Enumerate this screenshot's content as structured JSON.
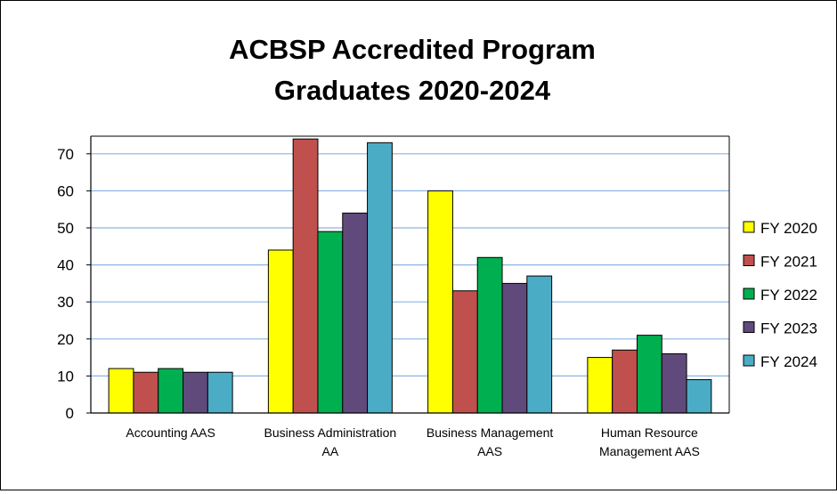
{
  "chart_data": {
    "type": "bar",
    "title": [
      "ACBSP Accredited Program",
      "Graduates 2020-2024"
    ],
    "categories": [
      [
        "Accounting AAS"
      ],
      [
        "Business Administration",
        "AA"
      ],
      [
        "Business Management",
        "AAS"
      ],
      [
        "Human Resource",
        "Management AAS"
      ]
    ],
    "series": [
      {
        "name": "FY 2020",
        "color": "#ffff00",
        "values": [
          12,
          44,
          60,
          15
        ]
      },
      {
        "name": "FY 2021",
        "color": "#c0504d",
        "values": [
          11,
          74,
          33,
          17
        ]
      },
      {
        "name": "FY 2022",
        "color": "#00b050",
        "values": [
          12,
          49,
          42,
          21
        ]
      },
      {
        "name": "FY 2023",
        "color": "#604a7b",
        "values": [
          11,
          54,
          35,
          16
        ]
      },
      {
        "name": "FY 2024",
        "color": "#4bacc6",
        "values": [
          11,
          73,
          37,
          9
        ]
      }
    ],
    "ylim": [
      0,
      74
    ],
    "yticks": [
      0,
      10,
      20,
      30,
      40,
      50,
      60,
      70
    ],
    "grid": true,
    "grid_color": "#8eb4e3",
    "legend_position": "right"
  }
}
